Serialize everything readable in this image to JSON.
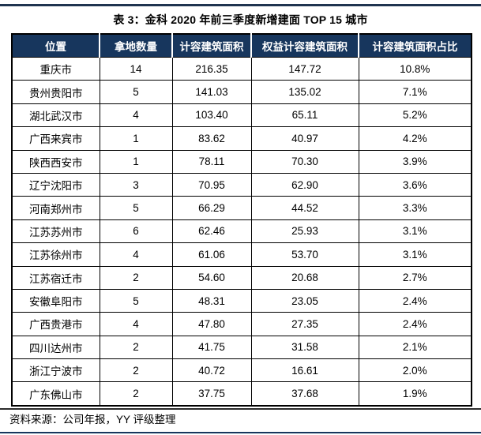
{
  "page": {
    "title": "表 3：金科 2020 年前三季度新增建面 TOP 15 城市",
    "source_note": "资料来源：公司年报，YY 评级整理"
  },
  "colors": {
    "header_bg": "#17365D",
    "header_text": "#FFFFFF",
    "top_rule": "#1F3450",
    "mid_rule": "#2B2B2B",
    "bottom_rule": "#17365D",
    "table_border": "#000000"
  },
  "table": {
    "headers": [
      "位置",
      "拿地数量",
      "计容建筑面积",
      "权益计容建筑面积",
      "计容建筑面积占比"
    ],
    "rows": [
      [
        "重庆市",
        "14",
        "216.35",
        "147.72",
        "10.8%"
      ],
      [
        "贵州贵阳市",
        "5",
        "141.03",
        "135.02",
        "7.1%"
      ],
      [
        "湖北武汉市",
        "4",
        "103.40",
        "65.11",
        "5.2%"
      ],
      [
        "广西来宾市",
        "1",
        "83.62",
        "40.97",
        "4.2%"
      ],
      [
        "陕西西安市",
        "1",
        "78.11",
        "70.30",
        "3.9%"
      ],
      [
        "辽宁沈阳市",
        "3",
        "70.95",
        "62.90",
        "3.6%"
      ],
      [
        "河南郑州市",
        "5",
        "66.29",
        "44.52",
        "3.3%"
      ],
      [
        "江苏苏州市",
        "6",
        "62.46",
        "25.93",
        "3.1%"
      ],
      [
        "江苏徐州市",
        "4",
        "61.06",
        "53.70",
        "3.1%"
      ],
      [
        "江苏宿迁市",
        "2",
        "54.60",
        "20.68",
        "2.7%"
      ],
      [
        "安徽阜阳市",
        "5",
        "48.31",
        "23.05",
        "2.4%"
      ],
      [
        "广西贵港市",
        "4",
        "47.80",
        "27.35",
        "2.4%"
      ],
      [
        "四川达州市",
        "2",
        "41.75",
        "31.58",
        "2.1%"
      ],
      [
        "浙江宁波市",
        "2",
        "40.72",
        "16.61",
        "2.0%"
      ],
      [
        "广东佛山市",
        "2",
        "37.75",
        "37.68",
        "1.9%"
      ]
    ]
  }
}
